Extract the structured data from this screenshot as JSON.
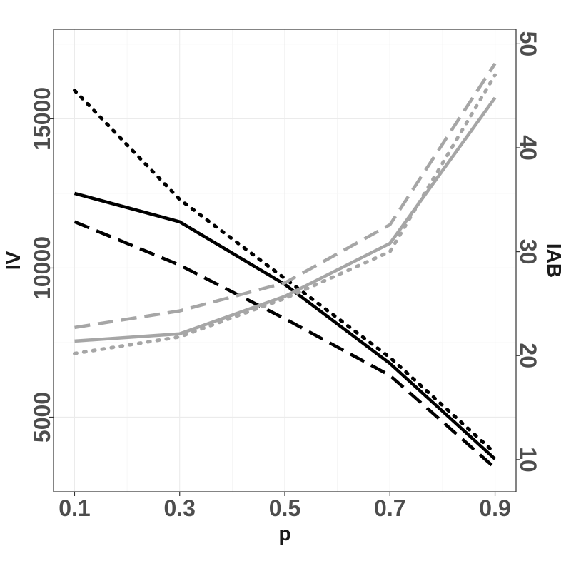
{
  "chart_data": {
    "type": "line",
    "xlabel": "p",
    "ylabel_left": "IV",
    "ylabel_right": "IAB",
    "x": [
      0.1,
      0.3,
      0.5,
      0.7,
      0.9
    ],
    "x_tick_labels": [
      "0.1",
      "0.3",
      "0.5",
      "0.7",
      "0.9"
    ],
    "xlim": [
      0.06,
      0.94
    ],
    "ylim_left": [
      2500,
      18000
    ],
    "ylim_right": [
      6.9,
      51.4
    ],
    "y_left_ticks": [
      5000,
      10000,
      15000
    ],
    "y_left_tick_labels": [
      "5000",
      "10000",
      "15000"
    ],
    "y_right_ticks": [
      10,
      20,
      30,
      40,
      50
    ],
    "y_right_tick_labels": [
      "10",
      "20",
      "30",
      "40",
      "50"
    ],
    "grid": true,
    "series": [
      {
        "axis": "left",
        "color": "#000000",
        "dash": "solid",
        "values": [
          12500,
          11550,
          9450,
          6800,
          3600
        ]
      },
      {
        "axis": "left",
        "color": "#000000",
        "dash": "dashed",
        "values": [
          11550,
          10100,
          8300,
          6400,
          3300
        ]
      },
      {
        "axis": "left",
        "color": "#000000",
        "dash": "dotted",
        "values": [
          15950,
          12300,
          9650,
          7000,
          3800
        ]
      },
      {
        "axis": "right",
        "color": "#a6a6a6",
        "dash": "solid",
        "values": [
          21.4,
          22.1,
          25.7,
          30.8,
          44.8
        ]
      },
      {
        "axis": "right",
        "color": "#a6a6a6",
        "dash": "dashed",
        "values": [
          22.7,
          24.3,
          27.0,
          32.6,
          48.1
        ]
      },
      {
        "axis": "right",
        "color": "#a6a6a6",
        "dash": "dotted",
        "values": [
          20.2,
          21.8,
          25.5,
          30.0,
          47.0
        ]
      }
    ]
  }
}
